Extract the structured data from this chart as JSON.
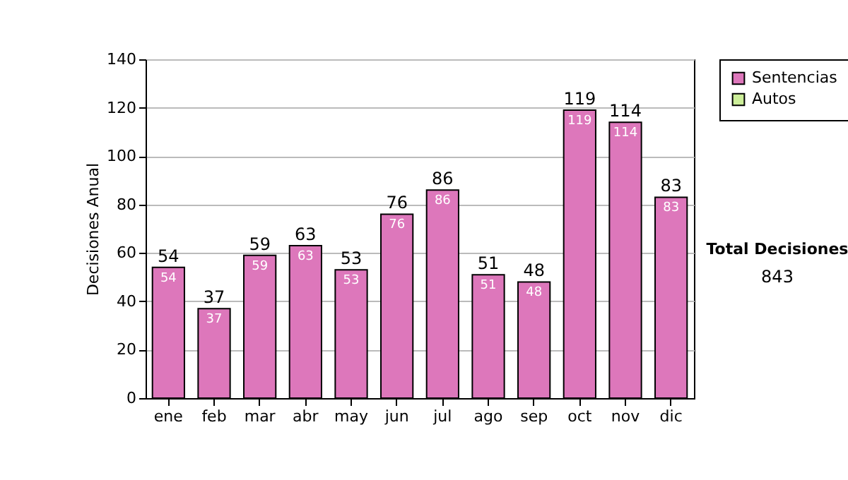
{
  "chart_data": {
    "type": "bar",
    "ylabel": "Decisiones Anual",
    "categories": [
      "ene",
      "feb",
      "mar",
      "abr",
      "may",
      "jun",
      "jul",
      "ago",
      "sep",
      "oct",
      "nov",
      "dic"
    ],
    "series": [
      {
        "name": "Sentencias",
        "color": "#dd77bb",
        "values": [
          54,
          37,
          59,
          63,
          53,
          76,
          86,
          51,
          48,
          119,
          114,
          83
        ],
        "value_labels": [
          "54",
          "37",
          "59",
          "63",
          "53",
          "76",
          "86",
          "51",
          "48",
          "119",
          "114",
          "83"
        ]
      },
      {
        "name": "Autos",
        "color": "#ccee99",
        "values": [
          null,
          null,
          null,
          null,
          null,
          null,
          null,
          null,
          null,
          null,
          null,
          null
        ]
      }
    ],
    "stacked": true,
    "totals": [
      "54",
      "37",
      "59",
      "63",
      "53",
      "76",
      "86",
      "51",
      "48",
      "119",
      "114",
      "83"
    ],
    "ylim": [
      0,
      140
    ],
    "yticks": [
      0,
      20,
      40,
      60,
      80,
      100,
      120,
      140
    ],
    "grid": "y",
    "legend": "right",
    "annotations": [
      "Total Decisiones",
      "843"
    ]
  }
}
